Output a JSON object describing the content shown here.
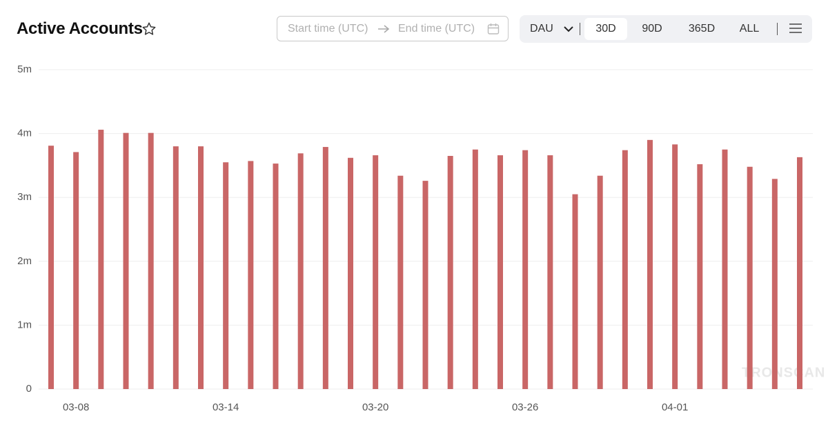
{
  "chart_data": {
    "type": "bar",
    "title": "Active Accounts",
    "categories": [
      null,
      "03-08",
      null,
      null,
      null,
      null,
      null,
      "03-14",
      null,
      null,
      null,
      null,
      null,
      "03-20",
      null,
      null,
      null,
      null,
      null,
      "03-26",
      null,
      null,
      null,
      null,
      null,
      "04-01",
      null,
      null,
      null,
      null,
      null
    ],
    "values": [
      3.81,
      3.71,
      4.06,
      4.01,
      4.01,
      3.8,
      3.8,
      3.55,
      3.57,
      3.53,
      3.69,
      3.79,
      3.62,
      3.66,
      3.34,
      3.26,
      3.65,
      3.75,
      3.66,
      3.74,
      3.66,
      3.05,
      3.34,
      3.74,
      3.9,
      3.83,
      3.52,
      3.75,
      3.48,
      3.29,
      3.63
    ],
    "color": "#c96666",
    "ylim": [
      0,
      5
    ],
    "yticks": [
      0,
      {
        "value": 1,
        "label": "1m"
      },
      {
        "value": 2,
        "label": "2m"
      },
      {
        "value": 3,
        "label": "3m"
      },
      {
        "value": 4,
        "label": "4m"
      },
      {
        "value": 5,
        "label": "5m"
      }
    ],
    "grid": true,
    "watermark": "TRONSCAN"
  },
  "controls": {
    "start_placeholder": "Start time (UTC)",
    "end_placeholder": "End time (UTC)",
    "metric": "DAU",
    "ranges": [
      "30D",
      "90D",
      "365D",
      "ALL"
    ],
    "selected_range": 0
  }
}
